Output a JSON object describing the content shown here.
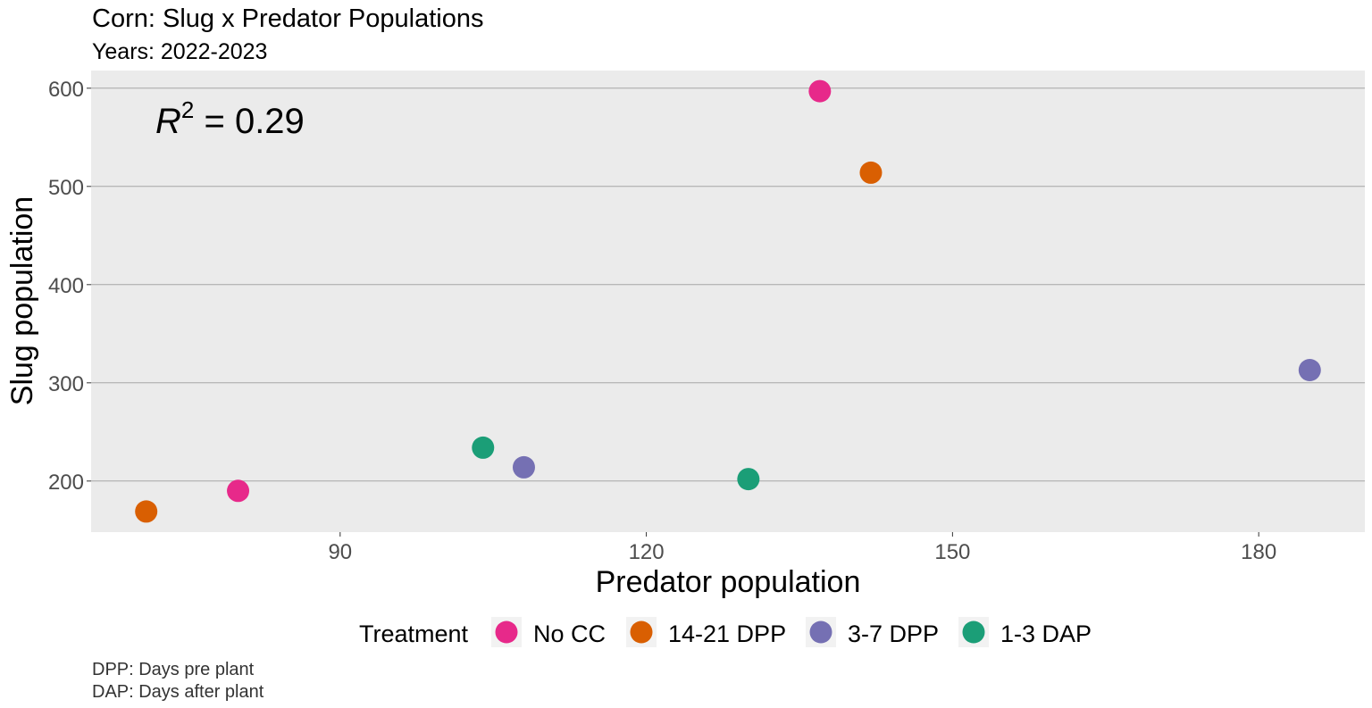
{
  "chart_data": {
    "type": "scatter",
    "title": "Corn: Slug x Predator Populations",
    "subtitle": "Years: 2022-2023",
    "xlabel": "Predator population",
    "ylabel": "Slug population",
    "xlim": [
      65.6,
      190.4
    ],
    "ylim": [
      148,
      618
    ],
    "x_ticks": [
      90,
      120,
      150,
      180
    ],
    "y_ticks": [
      200,
      300,
      400,
      500,
      600
    ],
    "grid": true,
    "annotation": {
      "var": "R",
      "exp": "2",
      "rest": " = 0.29"
    },
    "legend": {
      "title": "Treatment",
      "placement": "bottom"
    },
    "series": [
      {
        "name": "No CC",
        "color": "#e7298a",
        "points": [
          {
            "x": 80,
            "y": 190
          },
          {
            "x": 137,
            "y": 597
          }
        ]
      },
      {
        "name": "14-21 DPP",
        "color": "#d95f02",
        "points": [
          {
            "x": 71,
            "y": 169
          },
          {
            "x": 142,
            "y": 514
          }
        ]
      },
      {
        "name": "3-7 DPP",
        "color": "#7570b3",
        "points": [
          {
            "x": 108,
            "y": 214
          },
          {
            "x": 185,
            "y": 313
          }
        ]
      },
      {
        "name": "1-3 DAP",
        "color": "#1b9e77",
        "points": [
          {
            "x": 104,
            "y": 234
          },
          {
            "x": 130,
            "y": 202
          }
        ]
      }
    ],
    "caption": [
      "DPP: Days pre plant",
      "DAP: Days after plant"
    ]
  }
}
